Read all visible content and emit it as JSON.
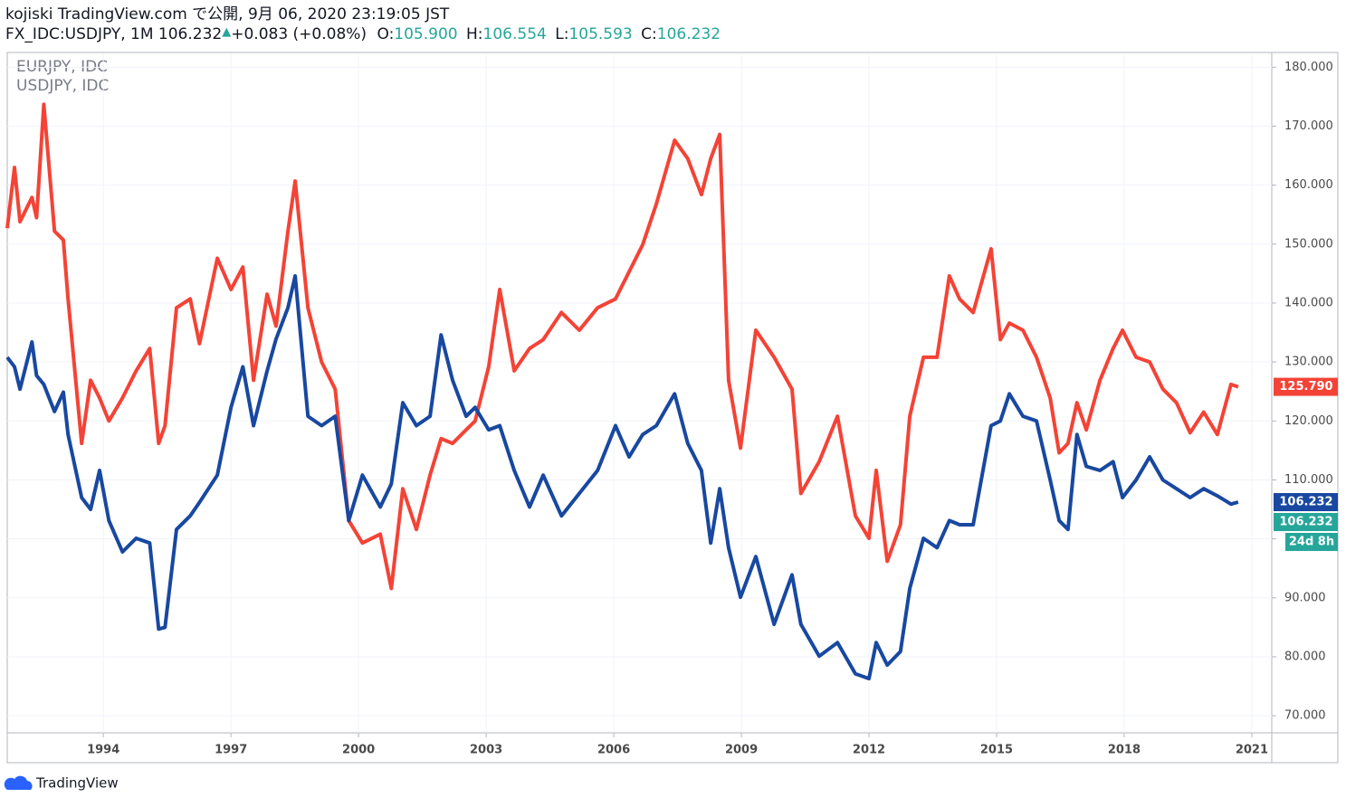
{
  "header": {
    "line1": "kojiski TradingView.com で公開, 9月 06, 2020 23:19:05 JST",
    "symbol": "FX_IDC:USDJPY, 1M 106.232",
    "change": "+0.083 (+0.08%)",
    "open_label": "O:",
    "open": "105.900",
    "high_label": "H:",
    "high": "106.554",
    "low_label": "L:",
    "low": "105.593",
    "close_label": "C:",
    "close": "106.232"
  },
  "footer": {
    "brand": "TradingView"
  },
  "chart_data": {
    "type": "line",
    "legend_items": [
      "EURJPY, IDC",
      "USDJPY, IDC"
    ],
    "x": [
      1991.74,
      1991.91,
      1992.04,
      1992.32,
      1992.43,
      1992.6,
      1992.85,
      1993.06,
      1993.17,
      1993.49,
      1993.7,
      1993.91,
      1994.13,
      1994.45,
      1994.77,
      1995.09,
      1995.3,
      1995.45,
      1995.72,
      1996.04,
      1996.26,
      1996.68,
      1997.0,
      1997.28,
      1997.53,
      1997.85,
      1998.06,
      1998.34,
      1998.51,
      1998.81,
      1999.13,
      1999.45,
      1999.77,
      2000.09,
      2000.51,
      2000.77,
      2001.04,
      2001.36,
      2001.68,
      2001.94,
      2002.21,
      2002.53,
      2002.74,
      2003.06,
      2003.32,
      2003.66,
      2004.02,
      2004.34,
      2004.77,
      2005.19,
      2005.62,
      2006.04,
      2006.36,
      2006.68,
      2007.0,
      2007.43,
      2007.74,
      2008.06,
      2008.28,
      2008.49,
      2008.7,
      2008.98,
      2009.34,
      2009.77,
      2010.19,
      2010.4,
      2010.83,
      2011.26,
      2011.68,
      2012.0,
      2012.17,
      2012.43,
      2012.74,
      2012.96,
      2013.28,
      2013.6,
      2013.89,
      2014.13,
      2014.45,
      2014.87,
      2015.09,
      2015.3,
      2015.62,
      2015.94,
      2016.26,
      2016.47,
      2016.68,
      2016.89,
      2017.11,
      2017.43,
      2017.74,
      2017.96,
      2018.28,
      2018.6,
      2018.91,
      2019.23,
      2019.55,
      2019.87,
      2020.19,
      2020.51,
      2020.68
    ],
    "series": [
      {
        "name": "EURJPY",
        "color": "#f44336",
        "values": [
          152.7,
          163,
          153.8,
          157.9,
          154.5,
          173.7,
          152.2,
          150.7,
          140.7,
          116.2,
          126.9,
          123.9,
          120,
          123.9,
          128.5,
          132.3,
          116.2,
          119.2,
          139.2,
          140.7,
          133.1,
          147.6,
          142.3,
          146.1,
          126.9,
          141.5,
          136.1,
          152.2,
          160.7,
          139.2,
          130,
          125.4,
          103.1,
          99.3,
          100.8,
          91.6,
          108.5,
          101.6,
          110.8,
          117,
          116.2,
          118.5,
          120,
          129.2,
          142.3,
          128.5,
          132.3,
          133.8,
          138.4,
          135.4,
          139.2,
          140.7,
          145.3,
          149.9,
          156.8,
          167.6,
          164.5,
          158.4,
          164.5,
          168.6,
          126.9,
          115.4,
          135.4,
          130.8,
          125.4,
          107.7,
          113.1,
          120.8,
          103.9,
          100.1,
          111.6,
          96.2,
          102.4,
          120.8,
          130.8,
          130.8,
          144.6,
          140.7,
          138.4,
          149.2,
          133.8,
          136.6,
          135.4,
          130.8,
          123.9,
          114.6,
          116.2,
          123.1,
          118.5,
          126.9,
          132.3,
          135.4,
          130.8,
          130,
          125.4,
          123.1,
          118,
          121.5,
          117.7,
          126.2,
          125.79
        ]
      },
      {
        "name": "USDJPY",
        "color": "#1848a0",
        "values": [
          130.8,
          129.2,
          125.4,
          133.4,
          127.7,
          126.2,
          121.6,
          124.9,
          117.7,
          107,
          105,
          111.6,
          103.1,
          97.8,
          100.1,
          99.3,
          84.7,
          85,
          101.6,
          103.9,
          106.2,
          110.8,
          122.3,
          129.2,
          119.2,
          128.5,
          133.9,
          139.2,
          144.6,
          120.8,
          119.2,
          120.8,
          103.1,
          110.8,
          105.4,
          109.3,
          123.1,
          119.2,
          120.8,
          134.6,
          126.9,
          120.8,
          122.3,
          118.5,
          119.2,
          111.6,
          105.4,
          110.8,
          103.9,
          107.7,
          111.6,
          119.2,
          113.9,
          117.7,
          119.2,
          124.6,
          116.2,
          111.6,
          99.3,
          108.5,
          98.5,
          90.1,
          97,
          85.5,
          93.9,
          85.5,
          80.1,
          82.4,
          77.1,
          76.3,
          82.4,
          78.6,
          80.9,
          91.6,
          100.1,
          98.5,
          103.1,
          102.4,
          102.4,
          119.2,
          120,
          124.6,
          120.8,
          120,
          110,
          103.1,
          101.6,
          117.7,
          112.3,
          111.6,
          113.1,
          107,
          110,
          113.9,
          110,
          108.5,
          107,
          108.5,
          107.3,
          105.9,
          106.232
        ]
      }
    ],
    "xlim": [
      1991.74,
      2021.47
    ],
    "xticks": [
      1994,
      1997,
      2000,
      2003,
      2006,
      2009,
      2012,
      2015,
      2018,
      2021
    ],
    "ylim": [
      67.1,
      182.2
    ],
    "yticks": [
      {
        "value": 70,
        "label": "70.000"
      },
      {
        "value": 80,
        "label": "80.000"
      },
      {
        "value": 90,
        "label": "90.000"
      },
      {
        "value": 100,
        "label": "100.000"
      },
      {
        "value": 110,
        "label": "110.000"
      },
      {
        "value": 120,
        "label": "120.000"
      },
      {
        "value": 130,
        "label": "130.000"
      },
      {
        "value": 140,
        "label": "140.000"
      },
      {
        "value": 150,
        "label": "150.000"
      },
      {
        "value": 160,
        "label": "160.000"
      },
      {
        "value": 170,
        "label": "170.000"
      },
      {
        "value": 180,
        "label": "180.000"
      }
    ],
    "grid": true,
    "price_labels": [
      {
        "value": 125.79,
        "label": "125.790",
        "color": "#f44336"
      },
      {
        "value": 106.232,
        "label": "106.232",
        "color": "#1848a0"
      },
      {
        "value": 106.232,
        "label": "106.232",
        "color": "#26a69a"
      }
    ],
    "countdown": {
      "label": "24d 8h",
      "color": "#26a69a"
    }
  }
}
